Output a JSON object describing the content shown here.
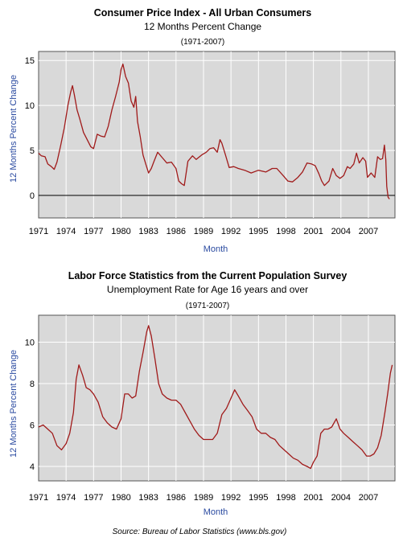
{
  "source_note": "Source:  Bureau of Labor Statistics (www.bls.gov)",
  "colors": {
    "plot_bg": "#d9d9d9",
    "line": "#a01a1a",
    "axis_label": "#2a4aa0",
    "grid": "#ffffff",
    "zero_line": "#000000"
  },
  "chart_data": [
    {
      "type": "line",
      "title": "Consumer Price Index - All Urban Consumers",
      "subtitle": "12 Months Percent Change",
      "period": "(1971-2007)",
      "xlabel": "Month",
      "ylabel": "12 Months Percent Change",
      "xlim": [
        1971,
        2009.9
      ],
      "ylim": [
        -2.5,
        16
      ],
      "xticks": [
        1971,
        1974,
        1977,
        1980,
        1983,
        1986,
        1989,
        1992,
        1995,
        1998,
        2001,
        2004,
        2007
      ],
      "yticks": [
        0,
        5,
        10,
        15
      ],
      "grid": true,
      "zero_line": true,
      "series": [
        {
          "x": [
            1971.0,
            1971.3,
            1971.7,
            1972.0,
            1972.4,
            1972.7,
            1973.0,
            1973.4,
            1973.8,
            1974.2,
            1974.5,
            1974.7,
            1974.9,
            1975.2,
            1975.5,
            1975.9,
            1976.3,
            1976.7,
            1977.0,
            1977.4,
            1977.8,
            1978.2,
            1978.6,
            1979.0,
            1979.4,
            1979.8,
            1980.0,
            1980.2,
            1980.5,
            1980.8,
            1981.1,
            1981.4,
            1981.6,
            1981.8,
            1982.1,
            1982.4,
            1982.7,
            1983.0,
            1983.3,
            1983.6,
            1984.0,
            1984.5,
            1985.0,
            1985.5,
            1986.0,
            1986.3,
            1986.6,
            1986.9,
            1987.3,
            1987.8,
            1988.2,
            1988.8,
            1989.3,
            1989.7,
            1990.1,
            1990.5,
            1990.8,
            1991.0,
            1991.4,
            1991.8,
            1992.3,
            1992.8,
            1993.5,
            1994.2,
            1995.0,
            1995.8,
            1996.5,
            1997.0,
            1997.7,
            1998.2,
            1998.7,
            1999.3,
            1999.8,
            2000.3,
            2000.8,
            2001.2,
            2001.6,
            2001.9,
            2002.2,
            2002.7,
            2003.1,
            2003.5,
            2003.9,
            2004.3,
            2004.7,
            2005.0,
            2005.4,
            2005.7,
            2006.0,
            2006.4,
            2006.7,
            2006.9,
            2007.3,
            2007.7,
            2008.0,
            2008.3,
            2008.55,
            2008.75,
            2008.9,
            2009.0,
            2009.15,
            2009.3
          ],
          "y": [
            4.7,
            4.4,
            4.3,
            3.5,
            3.2,
            2.9,
            3.7,
            5.5,
            7.5,
            10.0,
            11.5,
            12.2,
            11.2,
            9.5,
            8.5,
            7.0,
            6.2,
            5.4,
            5.2,
            6.8,
            6.6,
            6.5,
            7.7,
            9.5,
            11.0,
            12.6,
            14.0,
            14.6,
            13.2,
            12.5,
            10.5,
            9.8,
            11.0,
            8.2,
            6.5,
            4.5,
            3.5,
            2.5,
            3.0,
            3.8,
            4.8,
            4.2,
            3.6,
            3.7,
            3.0,
            1.6,
            1.3,
            1.1,
            3.8,
            4.4,
            4.0,
            4.5,
            4.8,
            5.2,
            5.3,
            4.8,
            6.2,
            5.8,
            4.5,
            3.1,
            3.2,
            3.0,
            2.8,
            2.5,
            2.8,
            2.6,
            3.0,
            3.0,
            2.2,
            1.6,
            1.5,
            2.0,
            2.6,
            3.6,
            3.5,
            3.3,
            2.4,
            1.6,
            1.1,
            1.6,
            3.0,
            2.2,
            1.9,
            2.2,
            3.2,
            3.0,
            3.5,
            4.7,
            3.6,
            4.2,
            3.8,
            2.0,
            2.5,
            2.0,
            4.3,
            4.0,
            4.1,
            5.6,
            4.0,
            1.0,
            -0.2,
            -0.4
          ]
        }
      ]
    },
    {
      "type": "line",
      "title": "Labor Force Statistics from the Current Population Survey",
      "subtitle": "Unemployment Rate for Age 16 years and over",
      "period": "(1971-2007)",
      "xlabel": "Month",
      "ylabel": "12 Months Percent Change",
      "xlim": [
        1971,
        2009.9
      ],
      "ylim": [
        3.3,
        11.3
      ],
      "xticks": [
        1971,
        1974,
        1977,
        1980,
        1983,
        1986,
        1989,
        1992,
        1995,
        1998,
        2001,
        2004,
        2007
      ],
      "yticks": [
        4,
        6,
        8,
        10
      ],
      "grid": true,
      "zero_line": false,
      "series": [
        {
          "x": [
            1971.0,
            1971.5,
            1972.0,
            1972.5,
            1973.0,
            1973.5,
            1974.0,
            1974.4,
            1974.8,
            1975.1,
            1975.4,
            1975.8,
            1976.2,
            1976.6,
            1977.0,
            1977.5,
            1978.0,
            1978.5,
            1979.0,
            1979.5,
            1980.0,
            1980.4,
            1980.8,
            1981.2,
            1981.6,
            1982.0,
            1982.4,
            1982.8,
            1983.0,
            1983.3,
            1983.7,
            1984.1,
            1984.5,
            1985.0,
            1985.5,
            1986.0,
            1986.5,
            1987.0,
            1987.5,
            1988.0,
            1988.5,
            1989.0,
            1989.5,
            1990.0,
            1990.5,
            1991.0,
            1991.5,
            1992.0,
            1992.4,
            1992.8,
            1993.3,
            1993.8,
            1994.3,
            1994.8,
            1995.3,
            1995.8,
            1996.3,
            1996.8,
            1997.3,
            1997.8,
            1998.3,
            1998.8,
            1999.3,
            1999.8,
            2000.3,
            2000.7,
            2001.0,
            2001.4,
            2001.8,
            2002.2,
            2002.6,
            2003.0,
            2003.5,
            2003.9,
            2004.3,
            2004.8,
            2005.3,
            2005.8,
            2006.3,
            2006.8,
            2007.2,
            2007.6,
            2008.0,
            2008.4,
            2008.8,
            2009.1,
            2009.4,
            2009.6
          ],
          "y": [
            5.9,
            6.0,
            5.8,
            5.6,
            5.0,
            4.8,
            5.1,
            5.6,
            6.6,
            8.2,
            8.9,
            8.4,
            7.8,
            7.7,
            7.5,
            7.1,
            6.4,
            6.1,
            5.9,
            5.8,
            6.3,
            7.5,
            7.5,
            7.3,
            7.4,
            8.6,
            9.5,
            10.5,
            10.8,
            10.3,
            9.2,
            8.0,
            7.5,
            7.3,
            7.2,
            7.2,
            7.0,
            6.6,
            6.2,
            5.8,
            5.5,
            5.3,
            5.3,
            5.3,
            5.6,
            6.5,
            6.8,
            7.3,
            7.7,
            7.4,
            7.0,
            6.7,
            6.4,
            5.8,
            5.6,
            5.6,
            5.4,
            5.3,
            5.0,
            4.8,
            4.6,
            4.4,
            4.3,
            4.1,
            4.0,
            3.9,
            4.2,
            4.5,
            5.6,
            5.8,
            5.8,
            5.9,
            6.3,
            5.8,
            5.6,
            5.4,
            5.2,
            5.0,
            4.8,
            4.5,
            4.5,
            4.6,
            4.9,
            5.5,
            6.6,
            7.5,
            8.5,
            8.9
          ]
        }
      ]
    }
  ]
}
